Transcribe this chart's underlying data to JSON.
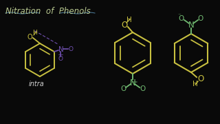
{
  "background_color": "#090909",
  "title": "Nitration  of  Phenols",
  "title_color": "#b8c890",
  "title_fontsize": 8.5,
  "ring_color": "#c8c040",
  "nitro_color_purple": "#7050b0",
  "nitro_color_green": "#70b870",
  "text_intra": "#d0d0d0",
  "underline_color": "#5080a0"
}
